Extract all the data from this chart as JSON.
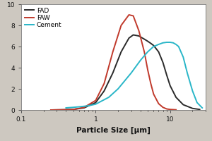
{
  "xlabel": "Particle Size [μm]",
  "xlim": [
    0.1,
    30
  ],
  "ylim": [
    0,
    10
  ],
  "yticks": [
    0,
    2,
    4,
    6,
    8,
    10
  ],
  "background_color": "#cdc8c0",
  "plot_background": "#ffffff",
  "FAD": {
    "color": "#2a2a2a",
    "x": [
      0.25,
      0.35,
      0.5,
      0.7,
      1.0,
      1.3,
      1.7,
      2.2,
      2.8,
      3.2,
      3.8,
      4.5,
      5.0,
      5.5,
      6.0,
      7.0,
      8.0,
      9.0,
      10.0,
      12.0,
      15.0,
      20.0,
      25.0
    ],
    "y": [
      0.0,
      0.02,
      0.05,
      0.2,
      0.7,
      1.8,
      3.5,
      5.5,
      6.8,
      7.1,
      7.0,
      6.7,
      6.5,
      6.3,
      6.1,
      5.5,
      4.5,
      3.3,
      2.3,
      1.2,
      0.5,
      0.15,
      0.05
    ]
  },
  "FAW": {
    "color": "#c0392b",
    "x": [
      0.25,
      0.35,
      0.5,
      0.7,
      1.0,
      1.3,
      1.7,
      2.2,
      2.8,
      3.2,
      3.8,
      4.5,
      5.0,
      5.5,
      6.0,
      7.0,
      8.0,
      9.0,
      10.0,
      12.0
    ],
    "y": [
      0.0,
      0.02,
      0.05,
      0.25,
      0.9,
      2.5,
      5.5,
      8.0,
      9.0,
      8.9,
      7.5,
      5.5,
      3.8,
      2.5,
      1.5,
      0.6,
      0.25,
      0.1,
      0.05,
      0.02
    ]
  },
  "Cement": {
    "color": "#29b6c8",
    "x": [
      0.4,
      0.5,
      0.6,
      0.7,
      0.8,
      1.0,
      1.5,
      2.0,
      3.0,
      4.0,
      5.0,
      6.0,
      7.0,
      8.0,
      9.0,
      10.0,
      11.0,
      12.0,
      13.0,
      15.0,
      17.0,
      20.0,
      23.0,
      27.0
    ],
    "y": [
      0.2,
      0.25,
      0.3,
      0.35,
      0.4,
      0.55,
      1.2,
      2.0,
      3.5,
      4.7,
      5.5,
      6.0,
      6.2,
      6.35,
      6.4,
      6.4,
      6.35,
      6.2,
      6.0,
      5.0,
      3.5,
      1.8,
      0.7,
      0.2
    ]
  },
  "legend_entries": [
    {
      "label": "FAD",
      "color": "#2a2a2a"
    },
    {
      "label": "FAW",
      "color": "#c0392b"
    },
    {
      "label": "Cement",
      "color": "#29b6c8"
    }
  ]
}
